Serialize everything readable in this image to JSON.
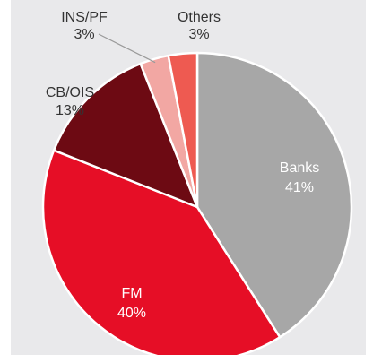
{
  "chart_data": {
    "type": "pie",
    "title": "",
    "start_angle_deg": 0,
    "direction": "clockwise",
    "slices": [
      {
        "label": "Banks",
        "value": 41,
        "display": "41%",
        "color": "#a7a7a7",
        "label_color": "#ffffff"
      },
      {
        "label": "FM",
        "value": 40,
        "display": "40%",
        "color": "#e60e26",
        "label_color": "#ffffff"
      },
      {
        "label": "CB/OIS",
        "value": 13,
        "display": "13%",
        "color": "#6d0a13",
        "label_color": "#333333"
      },
      {
        "label": "INS/PF",
        "value": 3,
        "display": "3%",
        "color": "#f2a7a3",
        "label_color": "#333333"
      },
      {
        "label": "Others",
        "value": 3,
        "display": "3%",
        "color": "#ee5a51",
        "label_color": "#333333"
      }
    ]
  }
}
